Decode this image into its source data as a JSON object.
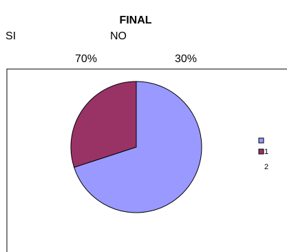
{
  "sheet": {
    "headers": [
      "SI",
      "NO"
    ]
  },
  "chart_data": {
    "type": "pie",
    "title": "FINAL",
    "categories": [
      "1",
      "2"
    ],
    "values": [
      70,
      30
    ],
    "value_labels": [
      "70%",
      "30%"
    ],
    "colors": [
      "#9999FF",
      "#993366"
    ],
    "legend": "right"
  }
}
